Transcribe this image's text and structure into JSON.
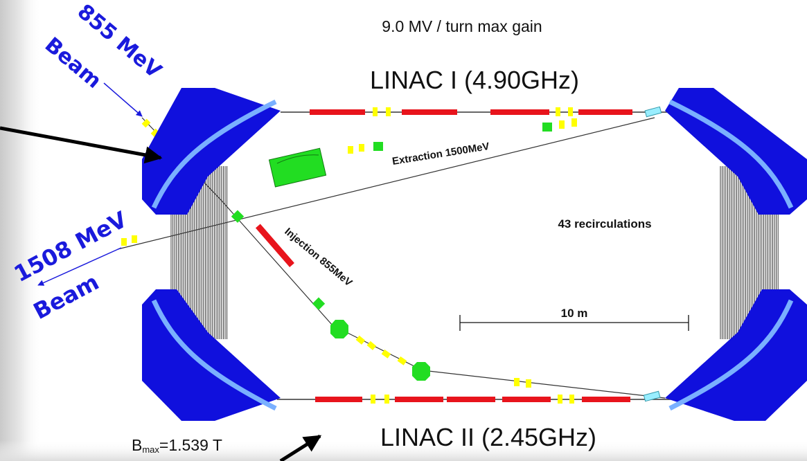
{
  "texts": {
    "max_gain": "9.0 MV / turn max gain",
    "linac1": "LINAC I (4.90GHz)",
    "linac2": "LINAC II (2.45GHz)",
    "extraction": "Extraction 1500MeV",
    "injection": "Injection 855MeV",
    "recirculations": "43 recirculations",
    "scale": "10 m",
    "bmax_prefix": "B",
    "bmax_sub": "max",
    "bmax_value": "=1.539 T",
    "beam855_energy": "855 MeV",
    "beam855_word": "Beam",
    "beam1508_energy": "1508 MeV",
    "beam1508_word": "Beam"
  },
  "colors": {
    "magnet": "#1010dd",
    "magnet_stripe": "#7ab0ff",
    "rf_section": "#e8141c",
    "quadrupole": "#ffff00",
    "green_element": "#22dd22",
    "label_blue": "#1a1adc",
    "arrow": "#000000"
  },
  "icons": {
    "pointer_arrow_top": "black-arrow-icon",
    "pointer_arrow_bottom": "black-arrow-icon"
  }
}
